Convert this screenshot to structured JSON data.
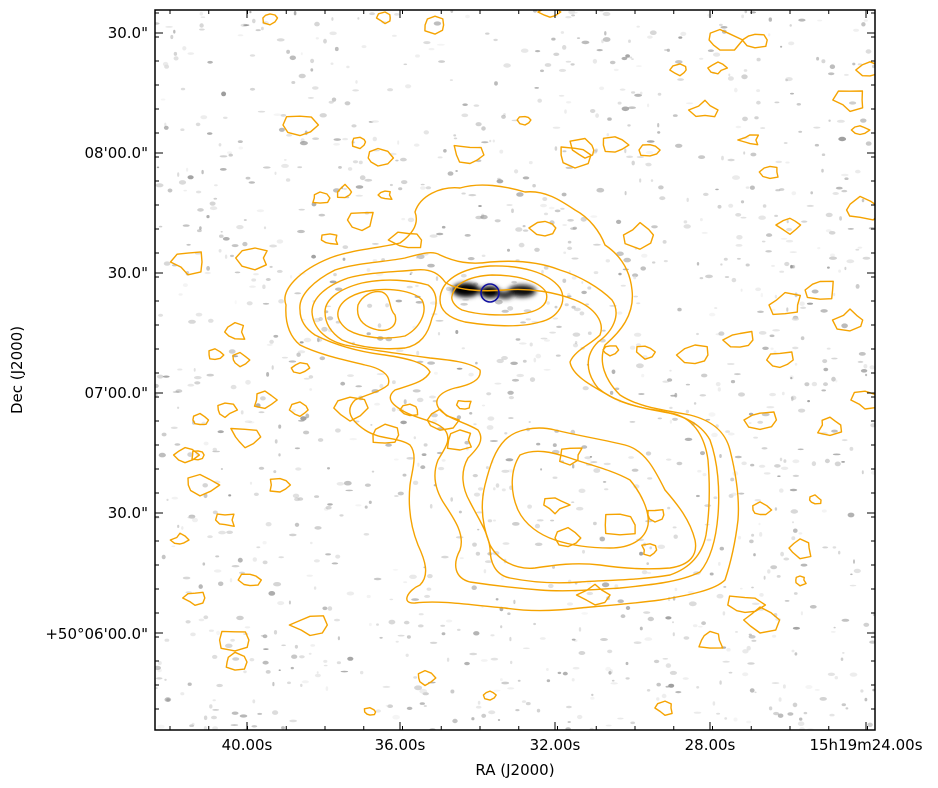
{
  "chart_data": {
    "type": "contour",
    "xlabel": "RA (J2000)",
    "ylabel": "Dec (J2000)",
    "x_ticks": [
      "40.00s",
      "36.00s",
      "32.00s",
      "28.00s",
      "15h19m24.00s"
    ],
    "y_ticks": [
      "+50°06'00.0\"",
      "30.0\"",
      "07'00.0\"",
      "30.0\"",
      "08'00.0\"",
      "30.0\""
    ],
    "contour_color": "#f5a300",
    "marker_color": "#1010a0",
    "background": "grayscale radio image with bright source at center"
  }
}
